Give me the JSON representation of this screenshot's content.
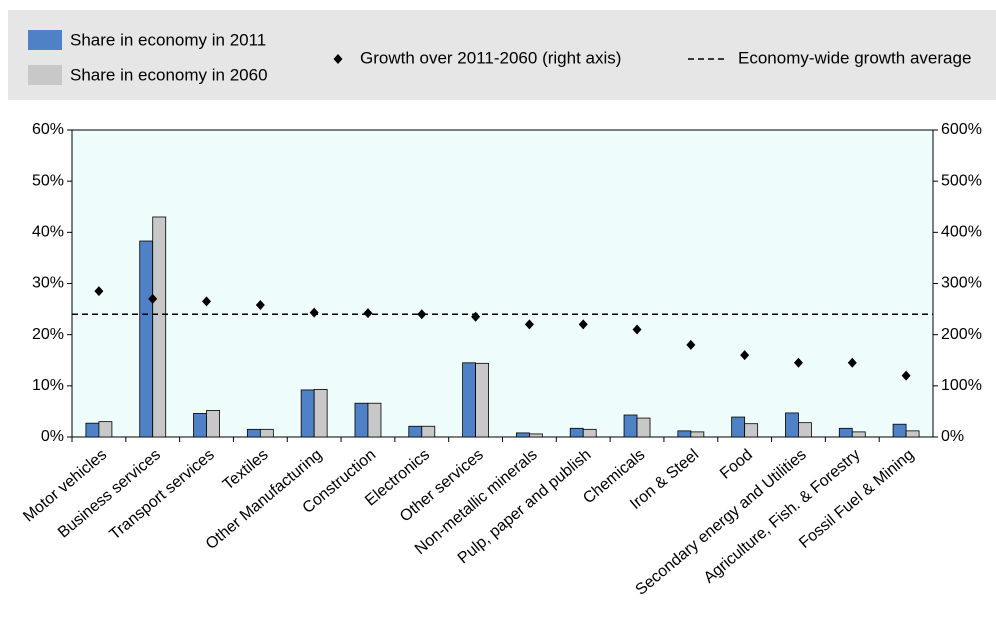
{
  "chart_data": {
    "type": "bar",
    "categories": [
      "Motor vehicles",
      "Business services",
      "Transport services",
      "Textiles",
      "Other Manufacturing",
      "Construction",
      "Electronics",
      "Other services",
      "Non-metallic minerals",
      "Pulp, paper and publish",
      "Chemicals",
      "Iron & Steel",
      "Food",
      "Secondary energy and Utilities",
      "Agriculture, Fish. & Forestry",
      "Fossil Fuel & Mining"
    ],
    "series": [
      {
        "name": "Share in economy in 2011",
        "type": "bar",
        "color": "#4f81c7",
        "values": [
          2.7,
          38.3,
          4.6,
          1.5,
          9.2,
          6.6,
          2.1,
          14.5,
          0.8,
          1.7,
          4.3,
          1.2,
          3.9,
          4.7,
          1.7,
          2.5
        ]
      },
      {
        "name": "Share in economy in 2060",
        "type": "bar",
        "color": "#c8c8c8",
        "values": [
          3.0,
          43.0,
          5.2,
          1.5,
          9.3,
          6.6,
          2.1,
          14.4,
          0.6,
          1.5,
          3.7,
          1.0,
          2.6,
          2.8,
          1.0,
          1.2
        ]
      },
      {
        "name": "Growth over 2011-2060 (right axis)",
        "type": "scatter",
        "axis": "y2",
        "color": "#000000",
        "values": [
          285,
          270,
          265,
          258,
          243,
          242,
          240,
          235,
          220,
          220,
          210,
          180,
          160,
          145,
          145,
          120
        ]
      }
    ],
    "reference_line": {
      "name": "Economy-wide growth average",
      "axis": "y2",
      "value": 240
    },
    "ylim": [
      0,
      60
    ],
    "yticks": [
      {
        "value": 0,
        "label": "0%"
      },
      {
        "value": 10,
        "label": "10%"
      },
      {
        "value": 20,
        "label": "20%"
      },
      {
        "value": 30,
        "label": "30%"
      },
      {
        "value": 40,
        "label": "40%"
      },
      {
        "value": 50,
        "label": "50%"
      },
      {
        "value": 60,
        "label": "60%"
      }
    ],
    "y2lim": [
      0,
      600
    ],
    "y2ticks": [
      {
        "value": 0,
        "label": "0%"
      },
      {
        "value": 100,
        "label": "100%"
      },
      {
        "value": 200,
        "label": "200%"
      },
      {
        "value": 300,
        "label": "300%"
      },
      {
        "value": 400,
        "label": "400%"
      },
      {
        "value": 500,
        "label": "500%"
      },
      {
        "value": 600,
        "label": "600%"
      }
    ]
  }
}
